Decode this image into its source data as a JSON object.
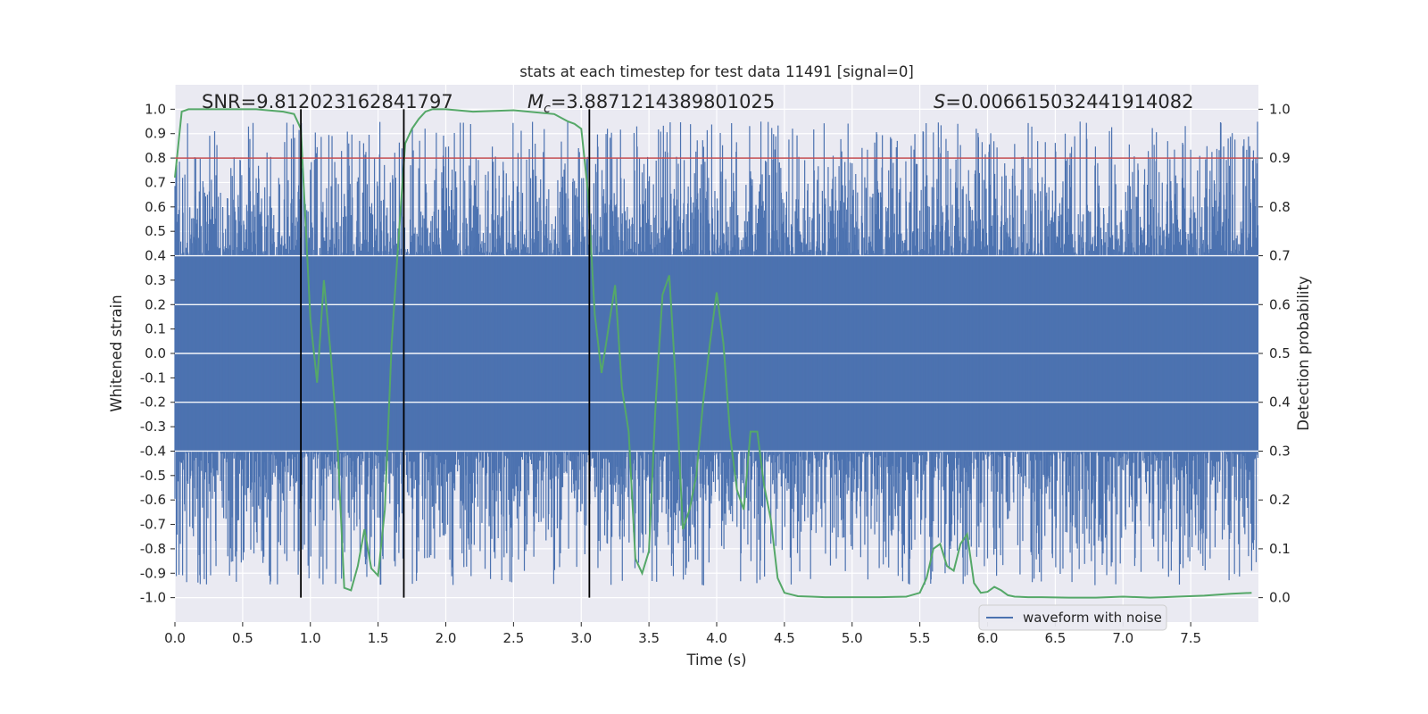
{
  "chart_data": {
    "type": "line",
    "title": "stats at each timestep for test data 11491 [signal=0]",
    "xlabel": "Time (s)",
    "ylabel": "Whitened strain",
    "ylabel_right": "Detection probability",
    "xlim": [
      0,
      8
    ],
    "ylim": [
      -1.1,
      1.1
    ],
    "ylim_right": [
      -0.05,
      1.05
    ],
    "x_ticks": [
      "0.0",
      "0.5",
      "1.0",
      "1.5",
      "2.0",
      "2.5",
      "3.0",
      "3.5",
      "4.0",
      "4.5",
      "5.0",
      "5.5",
      "6.0",
      "6.5",
      "7.0",
      "7.5"
    ],
    "y_ticks": [
      "1.0",
      "0.9",
      "0.8",
      "0.7",
      "0.6",
      "0.5",
      "0.4",
      "0.3",
      "0.2",
      "0.1",
      "0.0",
      "-0.1",
      "-0.2",
      "-0.3",
      "-0.4",
      "-0.5",
      "-0.6",
      "-0.7",
      "-0.8",
      "-0.9",
      "-1.0"
    ],
    "y_ticks_right": [
      "1.0",
      "0.9",
      "0.8",
      "0.7",
      "0.6",
      "0.5",
      "0.4",
      "0.3",
      "0.2",
      "0.1",
      "0.0"
    ],
    "grid": true,
    "legend_position": "lower-right",
    "annotations": {
      "snr": "SNR=9.812023162841797",
      "mc": "=3.8871214389801025",
      "mc_symbol": "M",
      "mc_subscript": "c",
      "s": "=0.006615032441914082",
      "s_symbol": "S"
    },
    "threshold_right": 0.9,
    "vertical_lines_x": [
      0.93,
      1.69,
      3.06
    ],
    "waveform": {
      "name": "waveform with noise",
      "color": "#4c72b0",
      "band_min": -0.4,
      "band_max": 0.4,
      "peak_max": 1.0,
      "trough_min": -0.97
    },
    "detection_probability": {
      "color": "#55a868",
      "x": [
        0.0,
        0.05,
        0.1,
        0.2,
        0.4,
        0.6,
        0.8,
        0.88,
        0.93,
        1.0,
        1.05,
        1.1,
        1.15,
        1.2,
        1.25,
        1.3,
        1.35,
        1.4,
        1.45,
        1.5,
        1.55,
        1.6,
        1.65,
        1.7,
        1.75,
        1.8,
        1.85,
        1.9,
        1.95,
        2.0,
        2.2,
        2.5,
        2.8,
        2.9,
        2.95,
        3.0,
        3.05,
        3.1,
        3.15,
        3.2,
        3.25,
        3.3,
        3.35,
        3.4,
        3.45,
        3.5,
        3.55,
        3.6,
        3.65,
        3.7,
        3.75,
        3.8,
        3.85,
        3.9,
        3.95,
        4.0,
        4.05,
        4.1,
        4.15,
        4.2,
        4.25,
        4.3,
        4.35,
        4.4,
        4.45,
        4.5,
        4.6,
        4.7,
        4.8,
        5.0,
        5.2,
        5.4,
        5.5,
        5.55,
        5.6,
        5.65,
        5.7,
        5.75,
        5.8,
        5.85,
        5.9,
        5.95,
        6.0,
        6.05,
        6.1,
        6.15,
        6.2,
        6.3,
        6.4,
        6.6,
        6.8,
        7.0,
        7.2,
        7.3,
        7.4,
        7.6,
        7.8,
        7.95
      ],
      "y": [
        0.86,
        0.995,
        1.0,
        1.0,
        1.0,
        1.0,
        0.995,
        0.99,
        0.96,
        0.57,
        0.44,
        0.65,
        0.5,
        0.32,
        0.02,
        0.015,
        0.065,
        0.14,
        0.06,
        0.045,
        0.18,
        0.52,
        0.73,
        0.93,
        0.96,
        0.98,
        0.995,
        1.0,
        1.0,
        1.0,
        0.995,
        0.998,
        0.99,
        0.975,
        0.97,
        0.96,
        0.83,
        0.58,
        0.46,
        0.55,
        0.64,
        0.43,
        0.34,
        0.08,
        0.05,
        0.095,
        0.4,
        0.62,
        0.66,
        0.43,
        0.14,
        0.18,
        0.25,
        0.4,
        0.52,
        0.625,
        0.52,
        0.33,
        0.22,
        0.18,
        0.34,
        0.34,
        0.23,
        0.16,
        0.04,
        0.01,
        0.003,
        0.002,
        0.001,
        0.001,
        0.001,
        0.002,
        0.01,
        0.04,
        0.1,
        0.11,
        0.065,
        0.055,
        0.11,
        0.13,
        0.03,
        0.01,
        0.012,
        0.022,
        0.015,
        0.005,
        0.002,
        0.001,
        0.001,
        0.0,
        0.0,
        0.002,
        0.0,
        0.001,
        0.002,
        0.004,
        0.008,
        0.01
      ]
    }
  }
}
